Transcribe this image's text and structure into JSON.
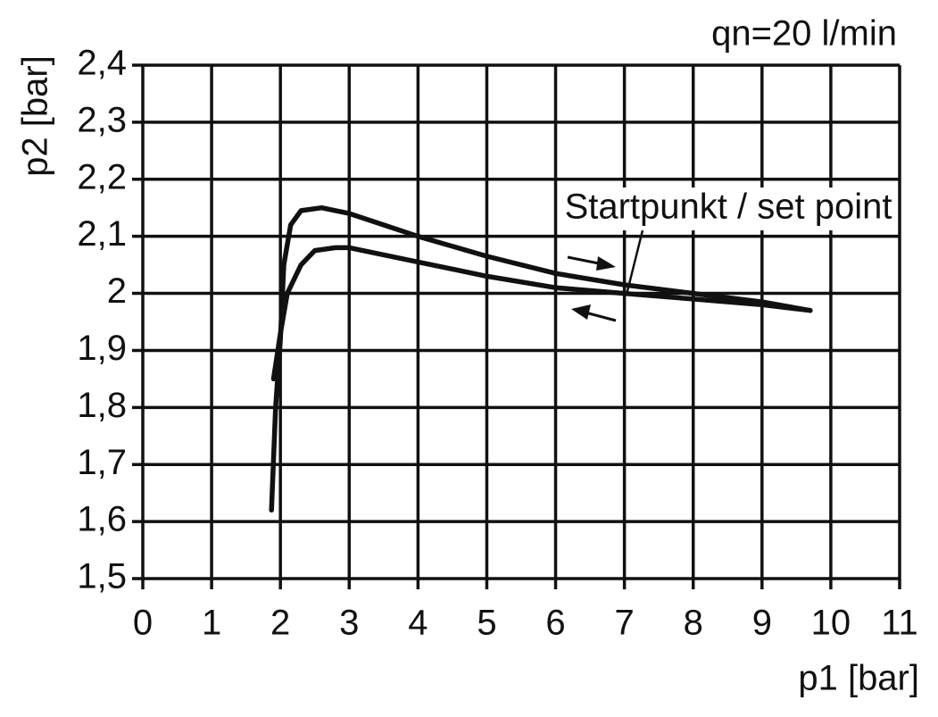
{
  "chart_data": {
    "type": "line",
    "annotation": "qn=20 l/min",
    "set_point_label": "Startpunkt / set point",
    "xlabel": "p1 [bar]",
    "ylabel": "p2 [bar]",
    "xlim": [
      0,
      11
    ],
    "xticks": [
      0,
      1,
      2,
      3,
      4,
      5,
      6,
      7,
      8,
      9,
      10,
      11
    ],
    "ylim": [
      1.5,
      2.4
    ],
    "yticks": [
      {
        "value": 1.5,
        "label": "1,5"
      },
      {
        "value": 1.6,
        "label": "1,6"
      },
      {
        "value": 1.7,
        "label": "1,7"
      },
      {
        "value": 1.8,
        "label": "1,8"
      },
      {
        "value": 1.9,
        "label": "1,9"
      },
      2,
      {
        "value": 2.1,
        "label": "2,1"
      },
      {
        "value": 2.2,
        "label": "2,2"
      },
      {
        "value": 2.3,
        "label": "2,3"
      },
      {
        "value": 2.4,
        "label": "2,4"
      }
    ],
    "grid": true,
    "series": [
      {
        "color": "#111111",
        "x": [
          1.87,
          1.93,
          2.0,
          2.05,
          2.15,
          2.3,
          2.6,
          3.0,
          3.5,
          4.0,
          5.0,
          6.0,
          7.0,
          8.0,
          9.0,
          9.7
        ],
        "values": [
          1.62,
          1.8,
          1.92,
          2.05,
          2.12,
          2.145,
          2.15,
          2.14,
          2.12,
          2.1,
          2.065,
          2.035,
          2.015,
          2.0,
          1.985,
          1.97
        ]
      },
      {
        "color": "#111111",
        "x": [
          1.9,
          2.0,
          2.1,
          2.3,
          2.5,
          2.8,
          3.0,
          4.0,
          5.0,
          6.0,
          7.0,
          8.0,
          9.0,
          9.7
        ],
        "values": [
          1.85,
          1.93,
          2.0,
          2.05,
          2.075,
          2.08,
          2.08,
          2.055,
          2.03,
          2.01,
          2.0,
          1.99,
          1.98,
          1.97
        ]
      }
    ]
  }
}
